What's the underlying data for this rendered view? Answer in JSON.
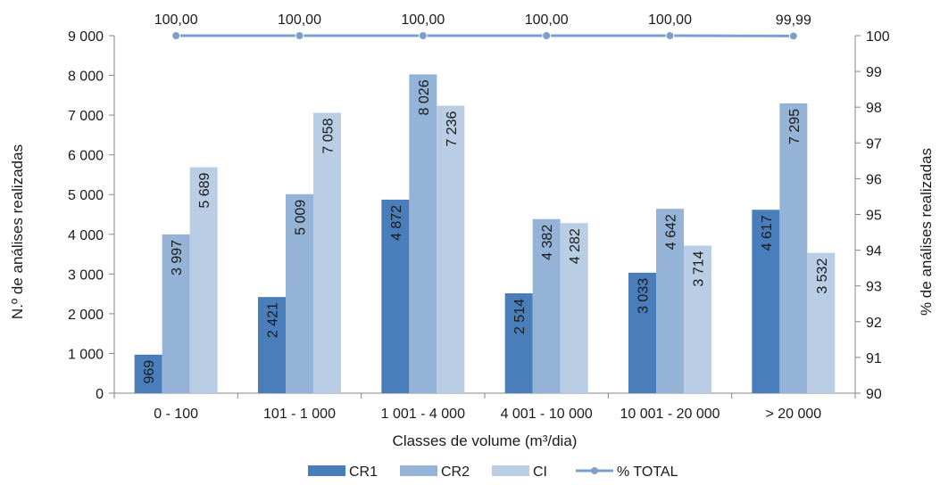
{
  "chart_data": {
    "type": "bar",
    "xlabel": "Classes de volume (m³/dia)",
    "ylabel": "N.º de análises realizadas",
    "y2label": "% de análises realizadas",
    "ylim": [
      0,
      9000
    ],
    "y2lim": [
      90,
      100
    ],
    "yticks": [
      "0",
      "1 000",
      "2 000",
      "3 000",
      "4 000",
      "5 000",
      "6 000",
      "7 000",
      "8 000",
      "9 000"
    ],
    "y2ticks": [
      "90",
      "91",
      "92",
      "93",
      "94",
      "95",
      "96",
      "97",
      "98",
      "99",
      "100"
    ],
    "categories": [
      "0 - 100",
      "101 - 1 000",
      "1 001 - 4 000",
      "4 001 - 10 000",
      "10 001 - 20 000",
      "> 20 000"
    ],
    "series": [
      {
        "name": "CR1",
        "kind": "bar",
        "color": "#4a7ebb",
        "values": [
          969,
          2421,
          4872,
          2514,
          3033,
          4617
        ],
        "labels": [
          "969",
          "2 421",
          "4 872",
          "2 514",
          "3 033",
          "4 617"
        ]
      },
      {
        "name": "CR2",
        "kind": "bar",
        "color": "#95b3d7",
        "values": [
          3997,
          5009,
          8026,
          4382,
          4642,
          7295
        ],
        "labels": [
          "3 997",
          "5 009",
          "8 026",
          "4 382",
          "4 642",
          "7 295"
        ]
      },
      {
        "name": "CI",
        "kind": "bar",
        "color": "#b9cde5",
        "values": [
          5689,
          7058,
          7236,
          4282,
          3714,
          3532
        ],
        "labels": [
          "5 689",
          "7 058",
          "7 236",
          "4 282",
          "3 714",
          "3 532"
        ]
      },
      {
        "name": "% TOTAL",
        "kind": "line",
        "axis": "right",
        "color": "#7ba0cd",
        "values": [
          100.0,
          100.0,
          100.0,
          100.0,
          100.0,
          99.99
        ],
        "labels": [
          "100,00",
          "100,00",
          "100,00",
          "100,00",
          "100,00",
          "99,99"
        ]
      }
    ],
    "legend_position": "bottom",
    "grid": false
  }
}
